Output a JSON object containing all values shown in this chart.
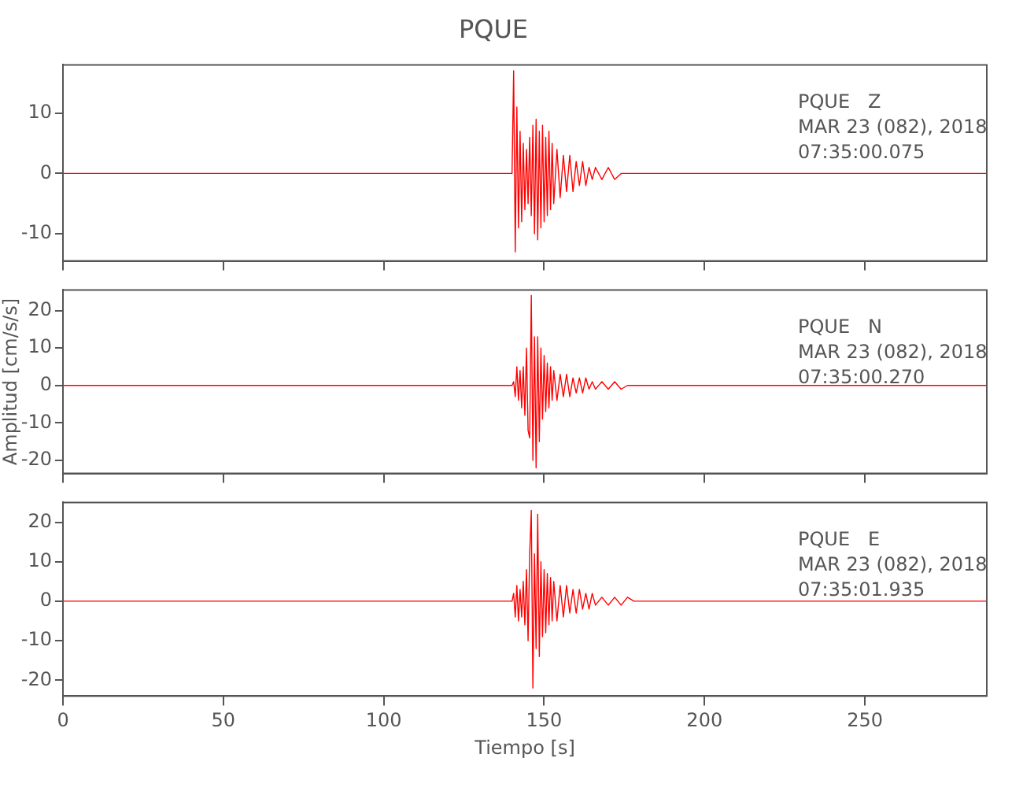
{
  "chart_data": [
    {
      "type": "line",
      "title": "PQUE",
      "x": [
        0,
        10,
        20,
        30,
        40,
        50,
        60,
        70,
        80,
        90,
        100,
        110,
        120,
        130,
        138,
        140,
        140.5,
        141,
        141.5,
        142,
        142.5,
        143,
        143.5,
        144,
        144.5,
        145,
        145.5,
        146,
        146.5,
        147,
        147.5,
        148,
        148.5,
        149,
        149.5,
        150,
        150.5,
        151,
        151.5,
        152,
        152.5,
        153,
        154,
        155,
        156,
        157,
        158,
        159,
        160,
        161,
        162,
        163,
        164,
        165,
        166,
        168,
        170,
        172,
        174,
        176,
        178,
        180,
        184,
        188,
        192,
        196,
        200,
        210,
        220,
        230,
        240,
        250,
        260,
        270,
        280,
        288
      ],
      "series": [
        {
          "color": "#ff0000",
          "values": [
            0,
            0,
            0,
            0,
            0,
            0,
            0,
            0,
            0,
            0,
            0,
            0,
            0,
            0,
            0,
            0,
            17,
            -13,
            11,
            -9,
            7,
            -8,
            5,
            -6,
            4,
            -5,
            6,
            -7,
            8,
            -10,
            9,
            -11,
            7,
            -9,
            8,
            -8,
            6,
            -7,
            7,
            -6,
            5,
            -5,
            4,
            -4,
            3,
            -3,
            3,
            -3,
            2,
            -2,
            2,
            -2,
            1,
            -1,
            1,
            -1,
            1,
            -1,
            0,
            0,
            0,
            0,
            0,
            0,
            0,
            0,
            0,
            0,
            0,
            0,
            0,
            0,
            0,
            0,
            0,
            0
          ]
        }
      ],
      "xlim": [
        0,
        288
      ],
      "xticks": [
        0,
        50,
        100,
        150,
        200,
        250
      ],
      "ylim": [
        -14.5,
        18
      ],
      "yticks": [
        -10,
        0,
        10
      ],
      "tick_labels": "y",
      "grid": false,
      "legend": false,
      "marker": "none",
      "line_style": "solid",
      "annotations": [
        "PQUE   Z",
        "MAR 23 (082), 2018",
        "07:35:00.075"
      ]
    },
    {
      "type": "line",
      "ylabel": "Amplitud [cm/s/s]",
      "x": [
        0,
        10,
        20,
        30,
        40,
        50,
        60,
        70,
        80,
        90,
        100,
        110,
        120,
        130,
        138,
        140,
        140.5,
        141,
        141.5,
        142,
        142.5,
        143,
        143.5,
        144,
        144.5,
        145,
        145.5,
        146,
        146.5,
        147,
        147.5,
        148,
        148.5,
        149,
        149.5,
        150,
        150.5,
        151,
        151.5,
        152,
        152.5,
        153,
        154,
        155,
        156,
        157,
        158,
        159,
        160,
        161,
        162,
        163,
        164,
        165,
        166,
        168,
        170,
        172,
        174,
        176,
        178,
        180,
        184,
        188,
        192,
        196,
        200,
        210,
        220,
        230,
        240,
        250,
        260,
        270,
        280,
        288
      ],
      "series": [
        {
          "color": "#ff0000",
          "values": [
            0,
            0,
            0,
            0,
            0,
            0,
            0,
            0,
            0,
            0,
            0,
            0,
            0,
            0,
            0,
            0,
            1,
            -3,
            5,
            -4,
            4,
            -6,
            5,
            -8,
            10,
            -12,
            -14,
            24,
            -20,
            13,
            -22,
            13,
            -15,
            10,
            -9,
            8,
            -7,
            6,
            -6,
            5,
            -4,
            4,
            -4,
            3,
            -3,
            3,
            -3,
            2,
            -2,
            2,
            -2,
            2,
            -1,
            1,
            -1,
            1,
            -1,
            1,
            -1,
            0,
            0,
            0,
            0,
            0,
            0,
            0,
            0,
            0,
            0,
            0,
            0,
            0,
            0,
            0,
            0,
            0
          ]
        }
      ],
      "xlim": [
        0,
        288
      ],
      "xticks": [
        0,
        50,
        100,
        150,
        200,
        250
      ],
      "ylim": [
        -23.5,
        25.5
      ],
      "yticks": [
        -20,
        -10,
        0,
        10,
        20
      ],
      "tick_labels": "y",
      "grid": false,
      "legend": false,
      "marker": "none",
      "line_style": "solid",
      "annotations": [
        "PQUE   N",
        "MAR 23 (082), 2018",
        "07:35:00.270"
      ]
    },
    {
      "type": "line",
      "xlabel": "Tiempo [s]",
      "x": [
        0,
        10,
        20,
        30,
        40,
        50,
        60,
        70,
        80,
        90,
        100,
        110,
        120,
        130,
        138,
        140,
        140.5,
        141,
        141.5,
        142,
        142.5,
        143,
        143.5,
        144,
        144.5,
        145,
        145.5,
        146,
        146.5,
        147,
        147.5,
        148,
        148.5,
        149,
        149.5,
        150,
        150.5,
        151,
        151.5,
        152,
        152.5,
        153,
        154,
        155,
        156,
        157,
        158,
        159,
        160,
        161,
        162,
        163,
        164,
        165,
        166,
        168,
        170,
        172,
        174,
        176,
        178,
        180,
        184,
        188,
        192,
        196,
        200,
        210,
        220,
        230,
        240,
        250,
        260,
        270,
        280,
        288
      ],
      "series": [
        {
          "color": "#ff0000",
          "values": [
            0,
            0,
            0,
            0,
            0,
            0,
            0,
            0,
            0,
            0,
            0,
            0,
            0,
            0,
            0,
            0,
            2,
            -4,
            4,
            -5,
            3,
            -4,
            5,
            -6,
            8,
            -10,
            12,
            23,
            -22,
            12,
            -12,
            22,
            -14,
            10,
            -9,
            8,
            -8,
            7,
            -6,
            6,
            -5,
            5,
            -5,
            4,
            -4,
            4,
            -3,
            3,
            -3,
            3,
            -2,
            2,
            -2,
            2,
            -1,
            1,
            -1,
            1,
            -1,
            1,
            0,
            0,
            0,
            0,
            0,
            0,
            0,
            0,
            0,
            0,
            0,
            0,
            0,
            0,
            0,
            0
          ]
        }
      ],
      "xlim": [
        0,
        288
      ],
      "xticks": [
        0,
        50,
        100,
        150,
        200,
        250
      ],
      "ylim": [
        -24,
        25
      ],
      "yticks": [
        -20,
        -10,
        0,
        10,
        20
      ],
      "grid": false,
      "legend": false,
      "marker": "none",
      "line_style": "solid",
      "annotations": [
        "PQUE   E",
        "MAR 23 (082), 2018",
        "07:35:01.935"
      ]
    }
  ]
}
